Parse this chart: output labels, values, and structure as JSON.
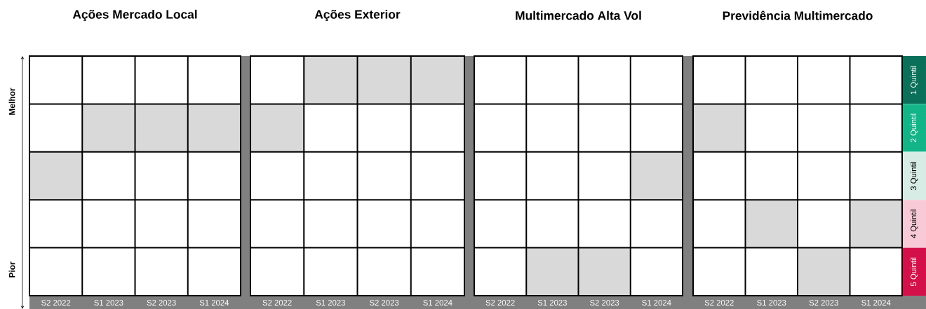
{
  "chart_data": [
    {
      "type": "bar",
      "title": "Ações Mercado Local",
      "categories": [
        "S2 2022",
        "S1 2023",
        "S2 2023",
        "S1 2024"
      ],
      "grid": true,
      "tick_labels": "x",
      "series": [
        {
          "color": "#d9d9d9",
          "values": [
            1,
            1,
            1,
            1
          ],
          "base": [
            2.5,
            1.5,
            1.5,
            1.5
          ],
          "axis": "y2"
        }
      ],
      "y2lim": [
        5.5,
        0.5
      ],
      "y2ticks": [
        1,
        2,
        3,
        4,
        5
      ],
      "annotations": [
        "Melhor",
        "Pior"
      ]
    },
    {
      "type": "bar",
      "title": "Ações Exterior",
      "categories": [
        "S2 2022",
        "S1 2023",
        "S2 2023",
        "S1 2024"
      ],
      "grid": true,
      "tick_labels": "x",
      "series": [
        {
          "color": "#d9d9d9",
          "values": [
            1,
            1,
            1,
            1
          ],
          "base": [
            1.5,
            0.5,
            0.5,
            0.5
          ],
          "axis": "y2"
        }
      ],
      "y2lim": [
        5.5,
        0.5
      ],
      "y2ticks": [
        1,
        2,
        3,
        4,
        5
      ]
    },
    {
      "type": "bar",
      "title": "Multimercado Alta Vol",
      "categories": [
        "S2 2022",
        "S1 2023",
        "S2 2023",
        "S1 2024"
      ],
      "grid": true,
      "tick_labels": "x",
      "series": [
        {
          "color": "#d9d9d9",
          "values": [
            null,
            1,
            1,
            1
          ],
          "base": [
            null,
            4.5,
            4.5,
            2.5
          ],
          "axis": "y2"
        }
      ],
      "y2lim": [
        5.5,
        0.5
      ],
      "y2ticks": [
        1,
        2,
        3,
        4,
        5
      ]
    },
    {
      "type": "bar",
      "title": "Previdência Multimercado",
      "categories": [
        "S2 2022",
        "S1 2023",
        "S2 2023",
        "S1 2024"
      ],
      "grid": true,
      "series": [
        {
          "color": "#d9d9d9",
          "values": [
            1,
            1,
            1,
            1
          ],
          "base": [
            1.5,
            3.5,
            4.5,
            3.5
          ],
          "axis": "y2"
        }
      ],
      "y2lim": [
        5.5,
        0.5
      ],
      "y2ticks": [
        {
          "value": 1,
          "label": "1 Quintil"
        },
        {
          "value": 2,
          "label": "2 Quintil"
        },
        {
          "value": 3,
          "label": "3 Quintil"
        },
        {
          "value": 4,
          "label": "4 Quintil"
        },
        {
          "value": 5,
          "label": "5 Quintil"
        }
      ]
    }
  ]
}
